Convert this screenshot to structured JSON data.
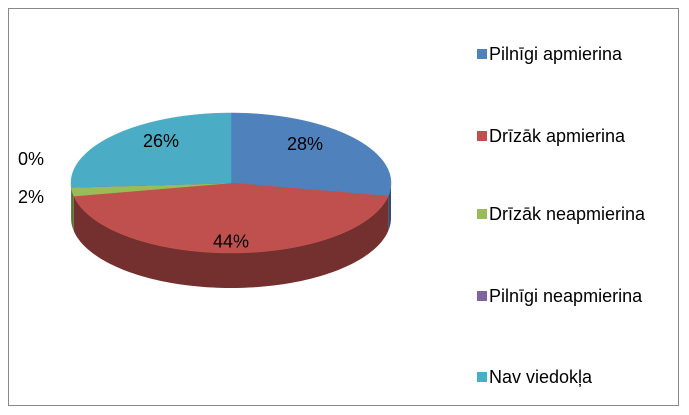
{
  "chart_data": {
    "type": "pie3d",
    "categories": [
      "Pilnīgi apmierina",
      "Drīzāk apmierina",
      "Drīzāk neapmierina",
      "Pilnīgi neapmierina",
      "Nav viedokļa"
    ],
    "values": [
      28,
      44,
      2,
      0,
      26
    ],
    "value_labels": [
      "28%",
      "44%",
      "2%",
      "0%",
      "26%"
    ],
    "colors": [
      "#4f81bd",
      "#c0504d",
      "#9bbb59",
      "#8064a2",
      "#4bacc6"
    ],
    "legend": "right"
  }
}
